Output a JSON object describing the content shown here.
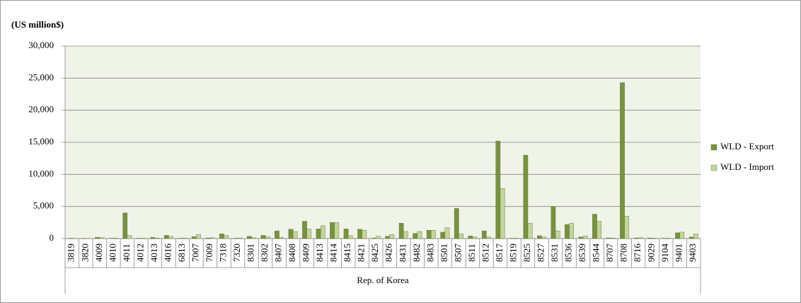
{
  "chart_data": {
    "type": "bar",
    "title": "(US million$)",
    "group": "Rep. of Korea",
    "categories": [
      "3819",
      "3820",
      "4009",
      "4010",
      "4011",
      "4012",
      "4013",
      "4016",
      "6813",
      "7007",
      "7009",
      "7318",
      "7320",
      "8301",
      "8302",
      "8407",
      "8408",
      "8409",
      "8413",
      "8414",
      "8415",
      "8421",
      "8425",
      "8426",
      "8431",
      "8482",
      "8483",
      "8501",
      "8507",
      "8511",
      "8512",
      "8517",
      "8519",
      "8525",
      "8527",
      "8531",
      "8536",
      "8539",
      "8544",
      "8707",
      "8708",
      "8716",
      "9029",
      "9104",
      "9401",
      "9403"
    ],
    "series": [
      {
        "name": "WLD - Export",
        "color": "#77933c",
        "values": [
          50,
          30,
          200,
          50,
          4000,
          50,
          200,
          500,
          50,
          300,
          100,
          750,
          50,
          350,
          500,
          1200,
          1450,
          2700,
          1500,
          2500,
          1500,
          1450,
          100,
          350,
          2400,
          800,
          1300,
          1000,
          4700,
          400,
          1200,
          15200,
          50,
          13000,
          450,
          5000,
          2200,
          250,
          3800,
          100,
          24300,
          100,
          100,
          50,
          900,
          250
        ]
      },
      {
        "name": "WLD - Import",
        "color": "#c3d69b",
        "values": [
          30,
          20,
          150,
          80,
          500,
          50,
          100,
          350,
          80,
          650,
          150,
          500,
          100,
          150,
          300,
          200,
          1100,
          1500,
          2000,
          2500,
          450,
          1300,
          350,
          650,
          1100,
          1100,
          1300,
          1700,
          750,
          250,
          250,
          7800,
          50,
          2400,
          250,
          1200,
          2400,
          400,
          2700,
          100,
          3500,
          150,
          50,
          50,
          1000,
          750
        ]
      }
    ],
    "ylim": [
      0,
      30000
    ],
    "yticks": [
      0,
      {
        "value": 5000,
        "label": "5,000"
      },
      {
        "value": 10000,
        "label": "10,000"
      },
      {
        "value": 15000,
        "label": "15,000"
      },
      {
        "value": 20000,
        "label": "20,000"
      },
      {
        "value": 25000,
        "label": "25,000"
      },
      {
        "value": 30000,
        "label": "30,000"
      }
    ],
    "grid": true,
    "legend": "right"
  }
}
